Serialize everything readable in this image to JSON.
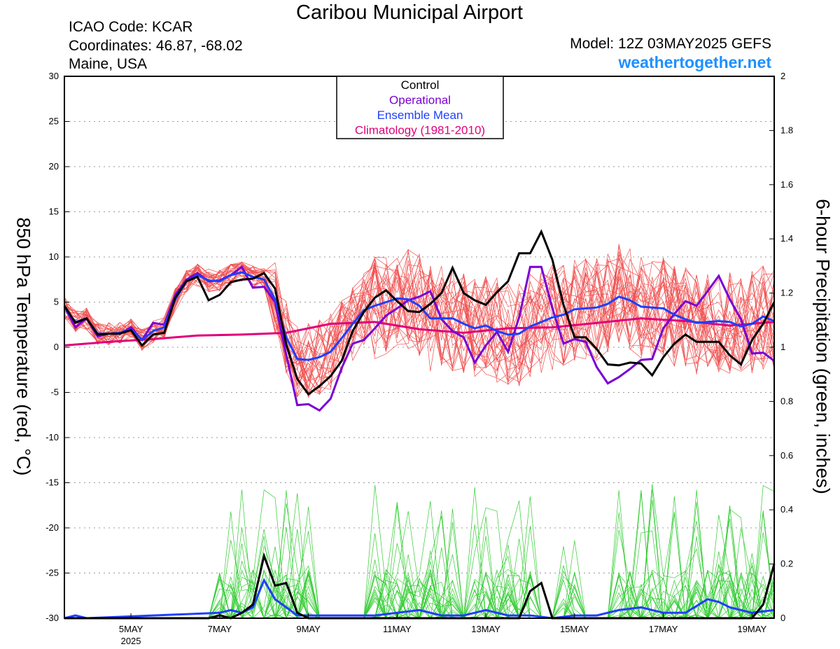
{
  "header": {
    "title": "Caribou Municipal Airport",
    "icao": "ICAO Code: KCAR",
    "coordinates": "Coordinates: 46.87, -68.02",
    "region": "Maine, USA",
    "model": "Model: 12Z 03MAY2025 GEFS",
    "site": "weathertogether.net"
  },
  "colors": {
    "control": "#000000",
    "operational": "#7a00d4",
    "ensemble_mean": "#1f3fff",
    "climatology": "#e0007a",
    "members_temp": "#f05050",
    "members_precip": "#33cc33",
    "site": "#1e90ff"
  },
  "chart_data": {
    "type": "line",
    "ylabel_left": "850 hPa Temperature (red, °C)",
    "ylabel_right": "6-hour Precipitation (green, inches)",
    "ylim_left": [
      -30,
      30
    ],
    "ylim_right": [
      0,
      2
    ],
    "yticks_left": [
      "30",
      "25",
      "20",
      "15",
      "10",
      "5",
      "0",
      "-5",
      "-10",
      "-15",
      "-20",
      "-25",
      "-30"
    ],
    "yticks_right": [
      "2",
      "1.8",
      "1.6",
      "1.4",
      "1.2",
      "1",
      "0.8",
      "0.6",
      "0.4",
      "0.2",
      "0"
    ],
    "x_range_days": [
      3.5,
      19.5
    ],
    "xticks": [
      {
        "day": 5,
        "label": "5MAY",
        "sub": "2025"
      },
      {
        "day": 7,
        "label": "7MAY"
      },
      {
        "day": 9,
        "label": "9MAY"
      },
      {
        "day": 11,
        "label": "11MAY"
      },
      {
        "day": 13,
        "label": "13MAY"
      },
      {
        "day": 15,
        "label": "15MAY"
      },
      {
        "day": 17,
        "label": "17MAY"
      },
      {
        "day": 19,
        "label": "19MAY"
      }
    ],
    "grid": "horizontal dotted",
    "legend": {
      "position": "top-center",
      "entries": [
        {
          "label": "Control",
          "color": "#000000"
        },
        {
          "label": "Operational",
          "color": "#7a00d4"
        },
        {
          "label": "Ensemble Mean",
          "color": "#1f3fff"
        },
        {
          "label": "Climatology (1981-2010)",
          "color": "#e0007a"
        }
      ]
    },
    "temperature": {
      "control": [
        [
          3.5,
          4.6
        ],
        [
          3.75,
          2.7
        ],
        [
          4.0,
          3.2
        ],
        [
          4.25,
          1.4
        ],
        [
          4.5,
          1.5
        ],
        [
          4.75,
          1.5
        ],
        [
          5.0,
          1.9
        ],
        [
          5.25,
          0.2
        ],
        [
          5.5,
          1.4
        ],
        [
          5.75,
          1.6
        ],
        [
          6.0,
          5.5
        ],
        [
          6.25,
          7.3
        ],
        [
          6.5,
          7.8
        ],
        [
          6.75,
          5.2
        ],
        [
          7.0,
          5.8
        ],
        [
          7.25,
          7.2
        ],
        [
          7.5,
          7.5
        ],
        [
          7.75,
          7.6
        ],
        [
          8.0,
          8.2
        ],
        [
          8.25,
          6.5
        ],
        [
          8.5,
          0.3
        ],
        [
          8.75,
          -3.5
        ],
        [
          9.0,
          -5.2
        ],
        [
          9.25,
          -4.3
        ],
        [
          9.5,
          -3.2
        ],
        [
          9.75,
          -1.5
        ],
        [
          10.0,
          1.8
        ],
        [
          10.25,
          3.9
        ],
        [
          10.5,
          5.5
        ],
        [
          10.75,
          6.3
        ],
        [
          11.0,
          5.1
        ],
        [
          11.25,
          4.0
        ],
        [
          11.5,
          3.9
        ],
        [
          11.75,
          4.8
        ],
        [
          12.0,
          6.0
        ],
        [
          12.25,
          8.8
        ],
        [
          12.5,
          6.0
        ],
        [
          12.75,
          5.2
        ],
        [
          13.0,
          4.7
        ],
        [
          13.25,
          6.1
        ],
        [
          13.5,
          7.3
        ],
        [
          13.75,
          10.4
        ],
        [
          14.0,
          10.4
        ],
        [
          14.25,
          12.8
        ],
        [
          14.5,
          9.7
        ],
        [
          14.75,
          4.7
        ],
        [
          15.0,
          1.1
        ],
        [
          15.25,
          1.1
        ],
        [
          15.5,
          -0.2
        ],
        [
          15.75,
          -1.9
        ],
        [
          16.0,
          -2.0
        ],
        [
          16.25,
          -1.7
        ],
        [
          16.5,
          -1.8
        ],
        [
          16.75,
          -3.1
        ],
        [
          17.0,
          -1.1
        ],
        [
          17.25,
          0.4
        ],
        [
          17.5,
          1.4
        ],
        [
          17.75,
          0.6
        ],
        [
          18.0,
          0.6
        ],
        [
          18.25,
          0.6
        ],
        [
          18.5,
          -0.9
        ],
        [
          18.75,
          -1.9
        ],
        [
          19.0,
          0.8
        ],
        [
          19.25,
          2.6
        ],
        [
          19.5,
          5.0
        ]
      ],
      "operational": [
        [
          3.5,
          4.5
        ],
        [
          3.75,
          2.2
        ],
        [
          4.0,
          3.2
        ],
        [
          4.25,
          1.2
        ],
        [
          4.5,
          1.5
        ],
        [
          4.75,
          1.5
        ],
        [
          5.0,
          2.2
        ],
        [
          5.25,
          0.8
        ],
        [
          5.5,
          2.7
        ],
        [
          5.75,
          2.5
        ],
        [
          6.0,
          5.8
        ],
        [
          6.25,
          7.5
        ],
        [
          6.5,
          8.2
        ],
        [
          6.75,
          7.3
        ],
        [
          7.0,
          7.4
        ],
        [
          7.25,
          8.0
        ],
        [
          7.5,
          8.9
        ],
        [
          7.75,
          6.6
        ],
        [
          8.0,
          6.7
        ],
        [
          8.25,
          5.0
        ],
        [
          8.5,
          -0.8
        ],
        [
          8.75,
          -6.4
        ],
        [
          9.0,
          -6.3
        ],
        [
          9.25,
          -7.0
        ],
        [
          9.5,
          -5.7
        ],
        [
          9.75,
          -2.3
        ],
        [
          10.0,
          0.4
        ],
        [
          10.25,
          0.8
        ],
        [
          10.5,
          2.1
        ],
        [
          10.75,
          3.5
        ],
        [
          11.0,
          4.3
        ],
        [
          11.25,
          5.2
        ],
        [
          11.5,
          5.6
        ],
        [
          11.75,
          6.2
        ],
        [
          12.0,
          3.1
        ],
        [
          12.25,
          1.8
        ],
        [
          12.5,
          1.1
        ],
        [
          12.75,
          -1.7
        ],
        [
          13.0,
          0.2
        ],
        [
          13.25,
          1.7
        ],
        [
          13.5,
          -0.5
        ],
        [
          13.75,
          3.3
        ],
        [
          14.0,
          8.9
        ],
        [
          14.25,
          8.9
        ],
        [
          14.5,
          4.3
        ],
        [
          14.75,
          0.4
        ],
        [
          15.0,
          0.9
        ],
        [
          15.25,
          0.6
        ],
        [
          15.5,
          -2.2
        ],
        [
          15.75,
          -4.0
        ],
        [
          16.0,
          -3.3
        ],
        [
          16.25,
          -2.4
        ],
        [
          16.5,
          -1.4
        ],
        [
          16.75,
          -1.3
        ],
        [
          17.0,
          2.1
        ],
        [
          17.25,
          3.7
        ],
        [
          17.5,
          5.1
        ],
        [
          17.75,
          4.6
        ],
        [
          18.0,
          6.2
        ],
        [
          18.25,
          7.9
        ],
        [
          18.5,
          5.3
        ],
        [
          18.75,
          3.1
        ],
        [
          19.0,
          -0.7
        ],
        [
          19.25,
          -0.6
        ],
        [
          19.5,
          -1.5
        ]
      ],
      "ensemble_mean": [
        [
          3.5,
          4.4
        ],
        [
          3.75,
          2.8
        ],
        [
          4.0,
          3.2
        ],
        [
          4.25,
          1.5
        ],
        [
          4.5,
          1.5
        ],
        [
          4.75,
          1.6
        ],
        [
          5.0,
          2.0
        ],
        [
          5.25,
          0.8
        ],
        [
          5.5,
          1.8
        ],
        [
          5.75,
          2.2
        ],
        [
          6.0,
          5.3
        ],
        [
          6.25,
          7.3
        ],
        [
          6.5,
          8.0
        ],
        [
          6.75,
          7.4
        ],
        [
          7.0,
          7.3
        ],
        [
          7.25,
          8.0
        ],
        [
          7.5,
          8.3
        ],
        [
          7.75,
          7.8
        ],
        [
          8.0,
          7.5
        ],
        [
          8.25,
          5.3
        ],
        [
          8.5,
          1.1
        ],
        [
          8.75,
          -1.3
        ],
        [
          9.0,
          -1.4
        ],
        [
          9.25,
          -1.1
        ],
        [
          9.5,
          -0.5
        ],
        [
          9.75,
          1.0
        ],
        [
          10.0,
          2.6
        ],
        [
          10.25,
          4.1
        ],
        [
          10.5,
          4.6
        ],
        [
          10.75,
          5.0
        ],
        [
          11.0,
          5.4
        ],
        [
          11.25,
          5.3
        ],
        [
          11.5,
          4.6
        ],
        [
          11.75,
          3.2
        ],
        [
          12.0,
          3.2
        ],
        [
          12.25,
          3.2
        ],
        [
          12.5,
          2.6
        ],
        [
          12.75,
          2.1
        ],
        [
          13.0,
          2.4
        ],
        [
          13.25,
          1.8
        ],
        [
          13.5,
          1.4
        ],
        [
          13.75,
          1.5
        ],
        [
          14.0,
          2.3
        ],
        [
          14.25,
          2.8
        ],
        [
          14.5,
          3.3
        ],
        [
          14.75,
          3.6
        ],
        [
          15.0,
          4.2
        ],
        [
          15.25,
          4.3
        ],
        [
          15.5,
          4.4
        ],
        [
          15.75,
          4.8
        ],
        [
          16.0,
          5.6
        ],
        [
          16.25,
          5.2
        ],
        [
          16.5,
          4.5
        ],
        [
          16.75,
          4.4
        ],
        [
          17.0,
          4.3
        ],
        [
          17.25,
          3.6
        ],
        [
          17.5,
          3.1
        ],
        [
          17.75,
          2.7
        ],
        [
          18.0,
          2.8
        ],
        [
          18.25,
          2.9
        ],
        [
          18.5,
          2.8
        ],
        [
          18.75,
          2.3
        ],
        [
          19.0,
          2.6
        ],
        [
          19.25,
          3.4
        ],
        [
          19.5,
          2.9
        ]
      ],
      "climatology": [
        [
          3.5,
          0.2
        ],
        [
          4.5,
          0.6
        ],
        [
          5.5,
          0.9
        ],
        [
          6.5,
          1.3
        ],
        [
          7.5,
          1.4
        ],
        [
          8.5,
          1.6
        ],
        [
          9.5,
          2.6
        ],
        [
          10.5,
          2.8
        ],
        [
          11.5,
          2.0
        ],
        [
          12.5,
          1.6
        ],
        [
          13.5,
          2.1
        ],
        [
          14.5,
          2.2
        ],
        [
          15.5,
          2.7
        ],
        [
          16.5,
          3.2
        ],
        [
          17.5,
          2.9
        ],
        [
          18.5,
          2.4
        ],
        [
          19.5,
          2.8
        ]
      ],
      "member_count": 30
    },
    "precipitation": {
      "control": [
        [
          3.5,
          0.0
        ],
        [
          6.75,
          0.0
        ],
        [
          7.0,
          0.01
        ],
        [
          7.25,
          0.0
        ],
        [
          7.5,
          0.02
        ],
        [
          7.75,
          0.05
        ],
        [
          8.0,
          0.23
        ],
        [
          8.25,
          0.12
        ],
        [
          8.5,
          0.13
        ],
        [
          8.75,
          0.02
        ],
        [
          9.0,
          0.0
        ],
        [
          13.75,
          0.0
        ],
        [
          14.0,
          0.1
        ],
        [
          14.25,
          0.13
        ],
        [
          14.5,
          0.0
        ],
        [
          19.0,
          0.0
        ],
        [
          19.25,
          0.05
        ],
        [
          19.5,
          0.2
        ]
      ],
      "ensemble_mean": [
        [
          3.5,
          0.0
        ],
        [
          3.75,
          0.01
        ],
        [
          4.0,
          0.0
        ],
        [
          7.0,
          0.02
        ],
        [
          7.25,
          0.03
        ],
        [
          7.5,
          0.02
        ],
        [
          7.75,
          0.04
        ],
        [
          8.0,
          0.14
        ],
        [
          8.25,
          0.07
        ],
        [
          8.5,
          0.04
        ],
        [
          8.75,
          0.01
        ],
        [
          9.0,
          0.01
        ],
        [
          9.25,
          0.01
        ],
        [
          9.5,
          0.01
        ],
        [
          10.0,
          0.01
        ],
        [
          10.5,
          0.01
        ],
        [
          11.0,
          0.02
        ],
        [
          11.5,
          0.03
        ],
        [
          12.0,
          0.01
        ],
        [
          12.5,
          0.01
        ],
        [
          13.0,
          0.03
        ],
        [
          13.5,
          0.01
        ],
        [
          14.0,
          0.01
        ],
        [
          14.5,
          0.0
        ],
        [
          15.0,
          0.01
        ],
        [
          15.5,
          0.01
        ],
        [
          16.0,
          0.03
        ],
        [
          16.5,
          0.04
        ],
        [
          17.0,
          0.02
        ],
        [
          17.5,
          0.02
        ],
        [
          18.0,
          0.07
        ],
        [
          18.25,
          0.06
        ],
        [
          18.5,
          0.04
        ],
        [
          19.0,
          0.02
        ],
        [
          19.5,
          0.03
        ]
      ]
    }
  }
}
